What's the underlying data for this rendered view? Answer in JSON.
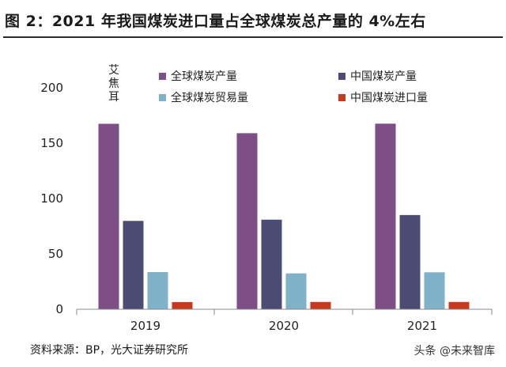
{
  "title": "图 2：2021 年我国煤炭进口量占全球煤炭总产量的 4%左右",
  "source": "资料来源：BP，光大证券研究所",
  "watermark": "头条 @未来智库",
  "colors": {
    "global_production": "#7d4f86",
    "china_production": "#4c4b73",
    "global_trade": "#7fb1c9",
    "china_import": "#c8381c"
  },
  "chart_data": {
    "type": "bar",
    "title": "",
    "ylabel": "艾焦耳",
    "xlabel": "",
    "categories": [
      "2019",
      "2020",
      "2021"
    ],
    "ylim": [
      0,
      200
    ],
    "yticks": [
      0,
      50,
      100,
      150,
      200
    ],
    "legend_position": "top",
    "grid": false,
    "series": [
      {
        "name": "全球煤炭产量",
        "color": "#7d4f86",
        "values": [
          167.5,
          159.0,
          167.6
        ]
      },
      {
        "name": "中国煤炭产量",
        "color": "#4c4b73",
        "values": [
          79.8,
          80.9,
          85.1
        ]
      },
      {
        "name": "全球煤炭贸易量",
        "color": "#7fb1c9",
        "values": [
          33.6,
          32.4,
          33.4
        ]
      },
      {
        "name": "中国煤炭进口量",
        "color": "#c8381c",
        "values": [
          6.5,
          6.6,
          6.6
        ]
      }
    ]
  }
}
